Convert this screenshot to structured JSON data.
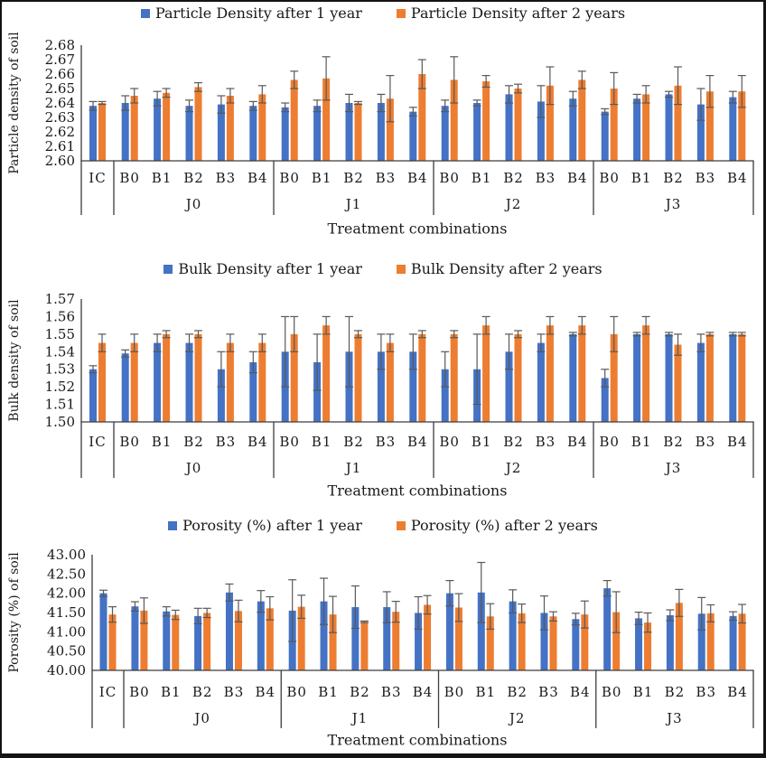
{
  "page": {
    "background": "#ffffff",
    "frame_color": "#141414"
  },
  "colors": {
    "series1": "#4472c4",
    "series2": "#ed7d31",
    "error_bar": "#595959",
    "axis_line": "#3c3c3c",
    "text": "#1a1a1a"
  },
  "chart_data": [
    {
      "type": "bar",
      "title": "",
      "ylabel": "Particle density of soil",
      "xlabel": "Treatment combinations",
      "ylim": [
        2.6,
        2.68
      ],
      "ytick_step": 0.01,
      "ytick_decimals": 2,
      "grid": false,
      "legend_position": "top-center",
      "error_bars": true,
      "groups": [
        {
          "label": "",
          "categories": [
            "IC"
          ]
        },
        {
          "label": "J0",
          "categories": [
            "B0",
            "B1",
            "B2",
            "B3",
            "B4"
          ]
        },
        {
          "label": "J1",
          "categories": [
            "B0",
            "B1",
            "B2",
            "B3",
            "B4"
          ]
        },
        {
          "label": "J2",
          "categories": [
            "B0",
            "B1",
            "B2",
            "B3",
            "B4"
          ]
        },
        {
          "label": "J3",
          "categories": [
            "B0",
            "B1",
            "B2",
            "B3",
            "B4"
          ]
        }
      ],
      "series": [
        {
          "name": "Particle Density after 1 year",
          "color_key": "series1",
          "values": [
            2.638,
            2.64,
            2.643,
            2.638,
            2.639,
            2.638,
            2.637,
            2.638,
            2.64,
            2.64,
            2.634,
            2.638,
            2.64,
            2.646,
            2.641,
            2.643,
            2.634,
            2.643,
            2.646,
            2.639,
            2.644
          ],
          "errors": [
            0.003,
            0.005,
            0.005,
            0.004,
            0.006,
            0.003,
            0.003,
            0.004,
            0.006,
            0.006,
            0.003,
            0.004,
            0.002,
            0.006,
            0.011,
            0.005,
            0.002,
            0.003,
            0.002,
            0.011,
            0.004
          ]
        },
        {
          "name": "Particle Density after 2 years",
          "color_key": "series2",
          "values": [
            2.64,
            2.645,
            2.647,
            2.651,
            2.645,
            2.646,
            2.656,
            2.657,
            2.64,
            2.643,
            2.66,
            2.656,
            2.655,
            2.65,
            2.652,
            2.656,
            2.65,
            2.646,
            2.652,
            2.648,
            2.648
          ],
          "errors": [
            0.001,
            0.005,
            0.003,
            0.003,
            0.005,
            0.006,
            0.006,
            0.015,
            0.001,
            0.016,
            0.01,
            0.016,
            0.004,
            0.003,
            0.013,
            0.006,
            0.011,
            0.006,
            0.013,
            0.011,
            0.011
          ]
        }
      ]
    },
    {
      "type": "bar",
      "title": "",
      "ylabel": "Bulk density of soil",
      "xlabel": "Treatment combinations",
      "ylim": [
        1.5,
        1.57
      ],
      "ytick_step": 0.01,
      "ytick_decimals": 2,
      "grid": false,
      "legend_position": "top-center",
      "error_bars": true,
      "groups": [
        {
          "label": "",
          "categories": [
            "IC"
          ]
        },
        {
          "label": "J0",
          "categories": [
            "B0",
            "B1",
            "B2",
            "B3",
            "B4"
          ]
        },
        {
          "label": "J1",
          "categories": [
            "B0",
            "B1",
            "B2",
            "B3",
            "B4"
          ]
        },
        {
          "label": "J2",
          "categories": [
            "B0",
            "B1",
            "B2",
            "B3",
            "B4"
          ]
        },
        {
          "label": "J3",
          "categories": [
            "B0",
            "B1",
            "B2",
            "B3",
            "B4"
          ]
        }
      ],
      "series": [
        {
          "name": "Bulk Density after 1 year",
          "color_key": "series1",
          "values": [
            1.53,
            1.539,
            1.545,
            1.545,
            1.53,
            1.534,
            1.54,
            1.534,
            1.54,
            1.54,
            1.54,
            1.53,
            1.53,
            1.54,
            1.545,
            1.55,
            1.525,
            1.55,
            1.55,
            1.545,
            1.55
          ],
          "errors": [
            0.002,
            0.002,
            0.005,
            0.005,
            0.01,
            0.006,
            0.02,
            0.016,
            0.02,
            0.01,
            0.01,
            0.01,
            0.02,
            0.01,
            0.005,
            0.001,
            0.005,
            0.001,
            0.001,
            0.005,
            0.001
          ]
        },
        {
          "name": "Bulk Density after 2 years",
          "color_key": "series2",
          "values": [
            1.545,
            1.545,
            1.55,
            1.55,
            1.545,
            1.545,
            1.55,
            1.555,
            1.55,
            1.545,
            1.55,
            1.55,
            1.555,
            1.55,
            1.555,
            1.555,
            1.55,
            1.555,
            1.544,
            1.55,
            1.55
          ],
          "errors": [
            0.005,
            0.005,
            0.002,
            0.002,
            0.005,
            0.005,
            0.01,
            0.005,
            0.002,
            0.005,
            0.002,
            0.002,
            0.005,
            0.002,
            0.005,
            0.005,
            0.01,
            0.005,
            0.006,
            0.001,
            0.001
          ]
        }
      ]
    },
    {
      "type": "bar",
      "title": "",
      "ylabel": "Porosity (%) of soil",
      "xlabel": "Treatment combinations",
      "ylim": [
        40.0,
        43.0
      ],
      "ytick_step": 0.5,
      "ytick_decimals": 2,
      "grid": false,
      "legend_position": "top-center",
      "error_bars": true,
      "groups": [
        {
          "label": "",
          "categories": [
            "IC"
          ]
        },
        {
          "label": "J0",
          "categories": [
            "B0",
            "B1",
            "B2",
            "B3",
            "B4"
          ]
        },
        {
          "label": "J1",
          "categories": [
            "B0",
            "B1",
            "B2",
            "B3",
            "B4"
          ]
        },
        {
          "label": "J2",
          "categories": [
            "B0",
            "B1",
            "B2",
            "B3",
            "B4"
          ]
        },
        {
          "label": "J3",
          "categories": [
            "B0",
            "B1",
            "B2",
            "B3",
            "B4"
          ]
        }
      ],
      "series": [
        {
          "name": "Porosity (%) after 1 year",
          "color_key": "series1",
          "values": [
            42.0,
            41.66,
            41.53,
            41.41,
            42.02,
            41.79,
            41.55,
            41.79,
            41.64,
            41.64,
            41.49,
            42.0,
            42.02,
            41.79,
            41.49,
            41.33,
            42.13,
            41.35,
            41.43,
            41.47,
            41.41
          ],
          "errors": [
            0.08,
            0.12,
            0.12,
            0.2,
            0.22,
            0.28,
            0.8,
            0.6,
            0.55,
            0.4,
            0.42,
            0.33,
            0.78,
            0.3,
            0.44,
            0.15,
            0.2,
            0.16,
            0.14,
            0.42,
            0.11
          ]
        },
        {
          "name": "Porosity (%) after 2 years",
          "color_key": "series2",
          "values": [
            41.45,
            41.55,
            41.44,
            41.49,
            41.54,
            41.61,
            41.65,
            41.45,
            41.26,
            41.52,
            41.7,
            41.63,
            41.4,
            41.48,
            41.4,
            41.45,
            41.51,
            41.24,
            41.75,
            41.48,
            41.47
          ],
          "errors": [
            0.2,
            0.33,
            0.12,
            0.12,
            0.28,
            0.3,
            0.3,
            0.47,
            0.02,
            0.27,
            0.24,
            0.36,
            0.33,
            0.24,
            0.12,
            0.35,
            0.53,
            0.25,
            0.35,
            0.22,
            0.24
          ]
        }
      ]
    }
  ]
}
